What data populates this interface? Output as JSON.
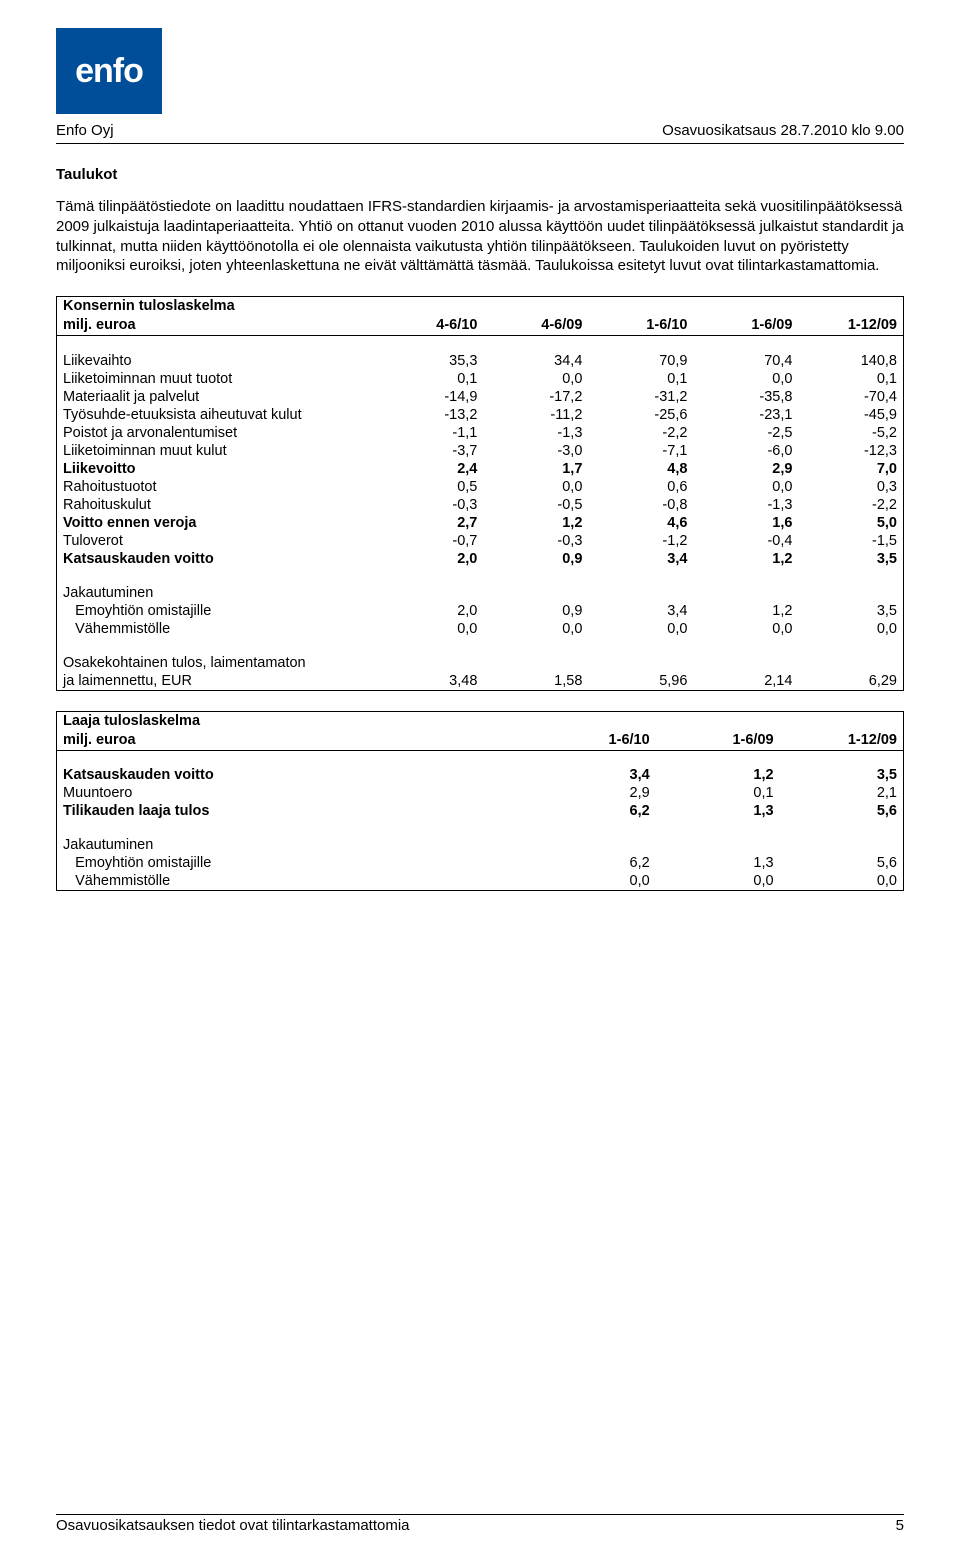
{
  "logo_text": "enfo",
  "header_left": "Enfo Oyj",
  "header_right": "Osavuosikatsaus 28.7.2010 klo 9.00",
  "section_title": "Taulukot",
  "intro_paragraph": "Tämä tilinpäätöstiedote on laadittu noudattaen IFRS-standardien kirjaamis- ja arvostamisperiaatteita sekä vuositilinpäätöksessä 2009 julkaistuja laadintaperiaatteita. Yhtiö on ottanut vuoden 2010 alussa käyttöön uudet tilinpäätöksessä julkaistut standardit ja tulkinnat, mutta niiden käyttöönotolla ei ole olennaista vaikutusta yhtiön tilinpäätökseen. Taulukoiden luvut on pyöristetty miljooniksi euroiksi, joten yhteenlaskettuna ne eivät välttämättä täsmää. Taulukoissa esitetyt luvut ovat tilintarkastamattomia.",
  "table_a": {
    "title": "Konsernin tuloslaskelma",
    "unit_label": "milj. euroa",
    "columns": [
      "4-6/10",
      "4-6/09",
      "1-6/10",
      "1-6/09",
      "1-12/09"
    ],
    "rows": [
      {
        "type": "spacer"
      },
      {
        "label": "Liikevaihto",
        "vals": [
          "35,3",
          "34,4",
          "70,9",
          "70,4",
          "140,8"
        ]
      },
      {
        "label": "Liiketoiminnan muut tuotot",
        "vals": [
          "0,1",
          "0,0",
          "0,1",
          "0,0",
          "0,1"
        ]
      },
      {
        "label": "Materiaalit ja palvelut",
        "vals": [
          "-14,9",
          "-17,2",
          "-31,2",
          "-35,8",
          "-70,4"
        ]
      },
      {
        "label": "Työsuhde-etuuksista aiheutuvat kulut",
        "vals": [
          "-13,2",
          "-11,2",
          "-25,6",
          "-23,1",
          "-45,9"
        ]
      },
      {
        "label": "Poistot ja arvonalentumiset",
        "vals": [
          "-1,1",
          "-1,3",
          "-2,2",
          "-2,5",
          "-5,2"
        ]
      },
      {
        "label": "Liiketoiminnan muut kulut",
        "vals": [
          "-3,7",
          "-3,0",
          "-7,1",
          "-6,0",
          "-12,3"
        ]
      },
      {
        "label": "Liikevoitto",
        "vals": [
          "2,4",
          "1,7",
          "4,8",
          "2,9",
          "7,0"
        ],
        "bold": true
      },
      {
        "label": "Rahoitustuotot",
        "vals": [
          "0,5",
          "0,0",
          "0,6",
          "0,0",
          "0,3"
        ]
      },
      {
        "label": "Rahoituskulut",
        "vals": [
          "-0,3",
          "-0,5",
          "-0,8",
          "-1,3",
          "-2,2"
        ]
      },
      {
        "label": "Voitto ennen veroja",
        "vals": [
          "2,7",
          "1,2",
          "4,6",
          "1,6",
          "5,0"
        ],
        "bold": true
      },
      {
        "label": "Tuloverot",
        "vals": [
          "-0,7",
          "-0,3",
          "-1,2",
          "-0,4",
          "-1,5"
        ]
      },
      {
        "label": "Katsauskauden voitto",
        "vals": [
          "2,0",
          "0,9",
          "3,4",
          "1,2",
          "3,5"
        ],
        "bold": true
      },
      {
        "type": "spacer"
      },
      {
        "label": "Jakautuminen",
        "vals": [
          "",
          "",
          "",
          "",
          ""
        ]
      },
      {
        "label": "  Emoyhtiön omistajille",
        "vals": [
          "2,0",
          "0,9",
          "3,4",
          "1,2",
          "3,5"
        ]
      },
      {
        "label": "  Vähemmistölle",
        "vals": [
          "0,0",
          "0,0",
          "0,0",
          "0,0",
          "0,0"
        ]
      },
      {
        "type": "spacer"
      },
      {
        "label": "Osakekohtainen tulos, laimentamaton",
        "vals": [
          "",
          "",
          "",
          "",
          ""
        ]
      },
      {
        "label": "ja laimennettu, EUR",
        "vals": [
          "3,48",
          "1,58",
          "5,96",
          "2,14",
          "6,29"
        ]
      }
    ]
  },
  "table_b": {
    "title": "Laaja tuloslaskelma",
    "unit_label": "milj. euroa",
    "columns": [
      "1-6/10",
      "1-6/09",
      "1-12/09"
    ],
    "rows": [
      {
        "type": "spacer"
      },
      {
        "label": "Katsauskauden voitto",
        "vals": [
          "3,4",
          "1,2",
          "3,5"
        ],
        "bold": true
      },
      {
        "label": "Muuntoero",
        "vals": [
          "2,9",
          "0,1",
          "2,1"
        ]
      },
      {
        "label": "Tilikauden laaja tulos",
        "vals": [
          "6,2",
          "1,3",
          "5,6"
        ],
        "bold": true
      },
      {
        "type": "spacer"
      },
      {
        "label": "Jakautuminen",
        "vals": [
          "",
          "",
          ""
        ]
      },
      {
        "label": "  Emoyhtiön omistajille",
        "vals": [
          "6,2",
          "1,3",
          "5,6"
        ]
      },
      {
        "label": "  Vähemmistölle",
        "vals": [
          "0,0",
          "0,0",
          "0,0"
        ]
      }
    ]
  },
  "footer_text": "Osavuosikatsauksen tiedot ovat tilintarkastamattomia",
  "page_number": "5"
}
